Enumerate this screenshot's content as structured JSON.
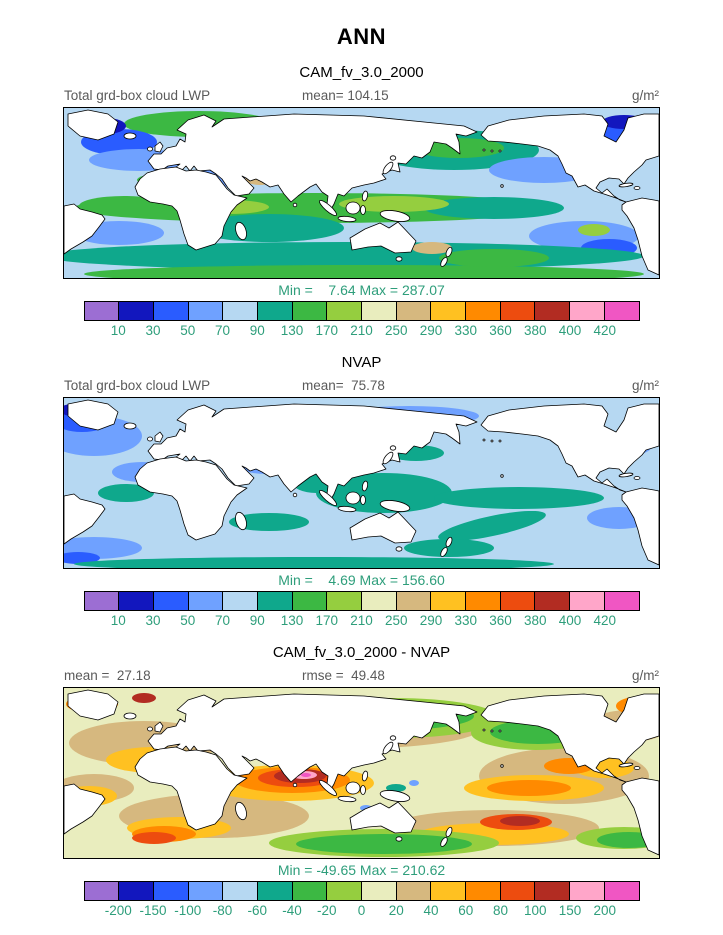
{
  "page": {
    "title": "ANN"
  },
  "colors": {
    "header_text": "#5a5a5a",
    "stats_text": "#2e9e7b",
    "map_border": "#000000",
    "background": "#ffffff"
  },
  "palette": [
    "#9c6ed3",
    "#1217be",
    "#2a5cff",
    "#6fa1ff",
    "#b6d8f2",
    "#0fa88c",
    "#3cb843",
    "#95ce3f",
    "#e9edbe",
    "#d6b87f",
    "#ffc121",
    "#ff8a00",
    "#ed4c0f",
    "#b22c22",
    "#ffa6c9",
    "#f056c3"
  ],
  "panels": [
    {
      "title": "CAM_fv_3.0_2000",
      "left_label": "Total grd-box cloud LWP",
      "mean_label": "mean= 104.15",
      "units": "g/m²",
      "minmax": "Min =    7.64 Max = 287.07"
    },
    {
      "title": "NVAP",
      "left_label": "Total grd-box cloud LWP",
      "mean_label": "mean=  75.78",
      "units": "g/m²",
      "minmax": "Min =    4.69 Max = 156.60"
    },
    {
      "title": "CAM_fv_3.0_2000 - NVAP",
      "mean_label": "mean =  27.18",
      "rmse_label": "rmse =  49.48",
      "units": "g/m²",
      "minmax": "Min = -49.65 Max = 210.62"
    }
  ],
  "chart_data": [
    {
      "type": "heatmap",
      "panel": "CAM_fv_3.0_2000",
      "title": "Total grd-box cloud LWP",
      "projection": "global lat-lon map",
      "units": "g/m²",
      "stats": {
        "mean": 104.15,
        "min": 7.64,
        "max": 287.07
      },
      "colorbar": {
        "levels": [
          10,
          30,
          50,
          70,
          90,
          130,
          170,
          210,
          250,
          290,
          330,
          360,
          380,
          400,
          420
        ],
        "colors": [
          "#9c6ed3",
          "#1217be",
          "#2a5cff",
          "#6fa1ff",
          "#b6d8f2",
          "#0fa88c",
          "#3cb843",
          "#95ce3f",
          "#e9edbe",
          "#d6b87f",
          "#ffc121",
          "#ff8a00",
          "#ed4c0f",
          "#b22c22",
          "#ffa6c9",
          "#f056c3"
        ]
      }
    },
    {
      "type": "heatmap",
      "panel": "NVAP",
      "title": "Total grd-box cloud LWP",
      "projection": "global lat-lon map",
      "units": "g/m²",
      "stats": {
        "mean": 75.78,
        "min": 4.69,
        "max": 156.6
      },
      "colorbar": {
        "levels": [
          10,
          30,
          50,
          70,
          90,
          130,
          170,
          210,
          250,
          290,
          330,
          360,
          380,
          400,
          420
        ],
        "colors": [
          "#9c6ed3",
          "#1217be",
          "#2a5cff",
          "#6fa1ff",
          "#b6d8f2",
          "#0fa88c",
          "#3cb843",
          "#95ce3f",
          "#e9edbe",
          "#d6b87f",
          "#ffc121",
          "#ff8a00",
          "#ed4c0f",
          "#b22c22",
          "#ffa6c9",
          "#f056c3"
        ]
      }
    },
    {
      "type": "heatmap",
      "panel": "CAM_fv_3.0_2000 - NVAP",
      "title": "difference: model minus observations",
      "projection": "global lat-lon map",
      "units": "g/m²",
      "stats": {
        "mean": 27.18,
        "rmse": 49.48,
        "min": -49.65,
        "max": 210.62
      },
      "colorbar": {
        "levels": [
          -200,
          -150,
          -100,
          -80,
          -60,
          -40,
          -20,
          0,
          20,
          40,
          60,
          80,
          100,
          150,
          200
        ],
        "colors": [
          "#9c6ed3",
          "#1217be",
          "#2a5cff",
          "#6fa1ff",
          "#b6d8f2",
          "#0fa88c",
          "#3cb843",
          "#95ce3f",
          "#e9edbe",
          "#d6b87f",
          "#ffc121",
          "#ff8a00",
          "#ed4c0f",
          "#b22c22",
          "#ffa6c9",
          "#f056c3"
        ]
      }
    }
  ]
}
